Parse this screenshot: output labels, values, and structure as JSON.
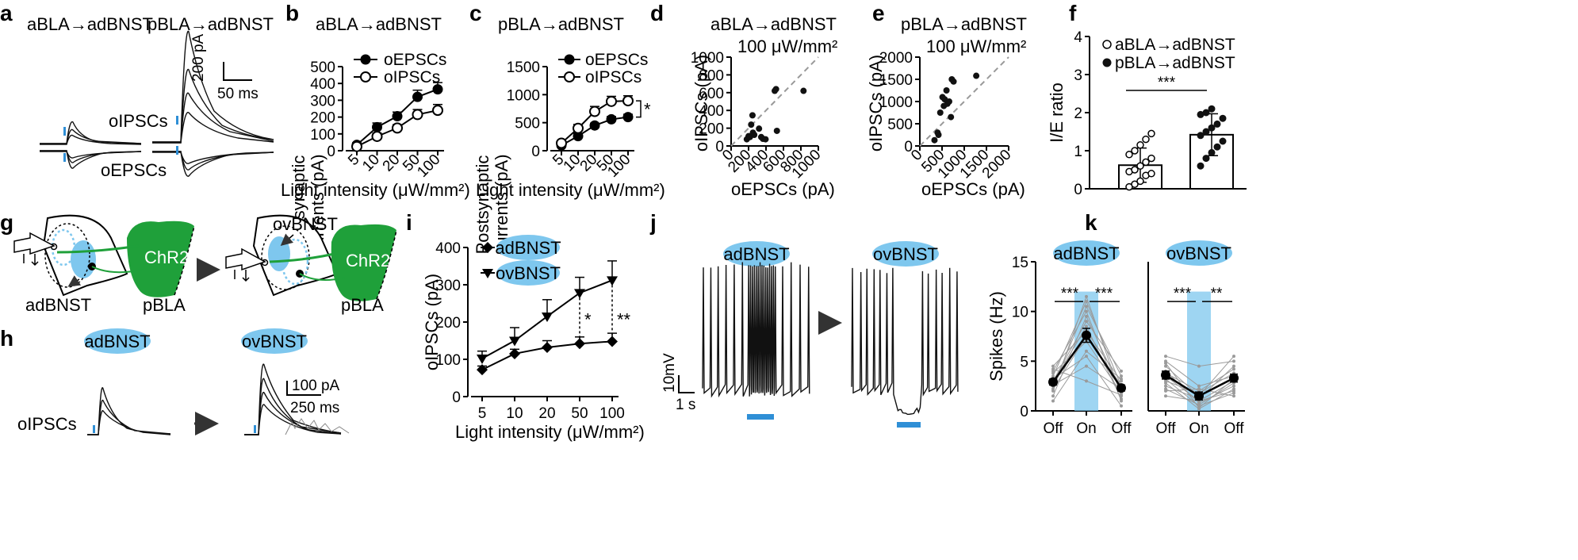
{
  "panel_labels": [
    "a",
    "b",
    "c",
    "d",
    "e",
    "f",
    "g",
    "h",
    "i",
    "j",
    "k"
  ],
  "colors": {
    "highlight": "#7ec7ee",
    "chr2": "#1fa03a",
    "light_bar": "#2f8fd6",
    "gray_trace": "#9a9a9a"
  },
  "panel_a": {
    "title_left": "aBLA→adBNST",
    "title_right": "pBLA→adBNST",
    "label_ipsc": "oIPSCs",
    "label_epsc": "oEPSCs",
    "scale_y": "200 pA",
    "scale_x": "50 ms"
  },
  "panel_g": {
    "label_ovbnst": "ovBNST",
    "label_adbnst": "adBNST",
    "label_pbla": "pBLA",
    "label_chr2": "ChR2"
  },
  "panel_h": {
    "pill_left": "adBNST",
    "pill_right": "ovBNST",
    "scale_y": "100 pA",
    "scale_x": "250 ms",
    "row_label": "oIPSCs"
  },
  "panel_j": {
    "pill_left": "adBNST",
    "pill_right": "ovBNST",
    "scale_y": "10mV",
    "scale_x": "1 s"
  },
  "chart_data": [
    {
      "id": "b",
      "type": "line",
      "title": "aBLA→adBNST",
      "xlabel": "Light intensity (μW/mm²)",
      "ylabel": "Postsynaptic currents (pA)",
      "categories": [
        "5",
        "10",
        "20",
        "50",
        "100"
      ],
      "ylim": [
        0,
        500
      ],
      "yticks": [
        0,
        100,
        200,
        300,
        400,
        500
      ],
      "series": [
        {
          "name": "oEPSCs",
          "marker": "filled",
          "values": [
            35,
            140,
            205,
            320,
            365
          ],
          "errors": [
            12,
            25,
            25,
            40,
            40
          ]
        },
        {
          "name": "oIPSCs",
          "marker": "open",
          "values": [
            25,
            85,
            135,
            215,
            240
          ],
          "errors": [
            8,
            20,
            20,
            30,
            35
          ]
        }
      ]
    },
    {
      "id": "c",
      "type": "line",
      "title": "pBLA→adBNST",
      "xlabel": "Light intensity (μW/mm²)",
      "ylabel": "Postsynaptic currents (pA)",
      "categories": [
        "5",
        "10",
        "20",
        "50",
        "100"
      ],
      "ylim": [
        0,
        1500
      ],
      "yticks": [
        0,
        500,
        1000,
        1500
      ],
      "series": [
        {
          "name": "oEPSCs",
          "marker": "filled",
          "values": [
            95,
            260,
            450,
            560,
            600
          ],
          "errors": [
            30,
            40,
            40,
            50,
            50
          ]
        },
        {
          "name": "oIPSCs",
          "marker": "open",
          "values": [
            135,
            400,
            700,
            880,
            890
          ],
          "errors": [
            40,
            70,
            90,
            90,
            90
          ]
        }
      ],
      "annotation": "*"
    },
    {
      "id": "d",
      "type": "scatter",
      "title": "aBLA→adBNST",
      "subtitle": "100 μW/mm²",
      "xlabel": "oEPSCs (pA)",
      "ylabel": "oIPSCs (pA)",
      "xlim": [
        0,
        1000
      ],
      "ylim": [
        0,
        1000
      ],
      "xticks": [
        0,
        200,
        400,
        600,
        800,
        1000
      ],
      "yticks": [
        0,
        200,
        400,
        600,
        800,
        1000
      ],
      "x": [
        180,
        200,
        215,
        230,
        245,
        250,
        265,
        320,
        345,
        365,
        395,
        500,
        515,
        525,
        830
      ],
      "y": [
        75,
        110,
        100,
        240,
        345,
        150,
        125,
        195,
        100,
        80,
        75,
        620,
        640,
        170,
        620
      ]
    },
    {
      "id": "e",
      "type": "scatter",
      "title": "pBLA→adBNST",
      "subtitle": "100 μW/mm²",
      "xlabel": "oEPSCs (pA)",
      "ylabel": "oIPSCs (pA)",
      "xlim": [
        0,
        2000
      ],
      "ylim": [
        0,
        2000
      ],
      "xticks": [
        0,
        500,
        1000,
        1500,
        2000
      ],
      "yticks": [
        0,
        500,
        1000,
        1500,
        2000
      ],
      "x": [
        330,
        400,
        420,
        460,
        510,
        540,
        560,
        600,
        620,
        660,
        700,
        720,
        760,
        1270
      ],
      "y": [
        130,
        300,
        250,
        750,
        1100,
        900,
        1050,
        1250,
        950,
        1000,
        650,
        1500,
        1450,
        1580
      ]
    },
    {
      "id": "f",
      "type": "bar",
      "ylabel": "I/E ratio",
      "ylim": [
        0,
        4
      ],
      "yticks": [
        0,
        1,
        2,
        3,
        4
      ],
      "categories": [
        "aBLA→adBNST",
        "pBLA→adBNST"
      ],
      "values": [
        0.62,
        1.42
      ],
      "errors": [
        0.45,
        0.55
      ],
      "points": [
        [
          0.05,
          0.12,
          0.2,
          0.35,
          0.4,
          0.45,
          0.5,
          0.6,
          0.7,
          0.8,
          0.9,
          1.0,
          1.15,
          1.3,
          1.45
        ],
        [
          0.6,
          0.8,
          0.95,
          1.1,
          1.25,
          1.4,
          1.5,
          1.6,
          1.7,
          1.85,
          1.95,
          2.0,
          2.1
        ]
      ],
      "legend": [
        "aBLA→adBNST",
        "pBLA→adBNST"
      ],
      "annotation": "***"
    },
    {
      "id": "i",
      "type": "line",
      "xlabel": "Light intensity (μW/mm²)",
      "ylabel": "oIPSCs (pA)",
      "categories": [
        "5",
        "10",
        "20",
        "50",
        "100"
      ],
      "ylim": [
        0,
        400
      ],
      "yticks": [
        0,
        100,
        200,
        300,
        400
      ],
      "series": [
        {
          "name": "adBNST",
          "marker": "diamond",
          "values": [
            72,
            115,
            132,
            142,
            148
          ],
          "errors": [
            10,
            12,
            18,
            18,
            22
          ]
        },
        {
          "name": "ovBNST",
          "marker": "triangle",
          "values": [
            102,
            150,
            215,
            278,
            312
          ],
          "errors": [
            20,
            35,
            45,
            42,
            52
          ]
        }
      ],
      "annotations": [
        "*",
        "**"
      ]
    },
    {
      "id": "k",
      "type": "line",
      "ylabel": "Spikes (Hz)",
      "ylim": [
        0,
        15
      ],
      "yticks": [
        0,
        5,
        10,
        15
      ],
      "panels": [
        {
          "pill": "adBNST",
          "categories": [
            "Off",
            "On",
            "Off"
          ],
          "mean": [
            2.9,
            7.6,
            2.3
          ],
          "errors": [
            0.3,
            0.7,
            0.3
          ],
          "annotations": [
            "***",
            "***"
          ],
          "individual": [
            [
              2.0,
              11.5,
              1.5
            ],
            [
              3.5,
              11.0,
              2.5
            ],
            [
              2.5,
              10.5,
              3.5
            ],
            [
              4.0,
              10.0,
              1.0
            ],
            [
              1.5,
              9.5,
              2.0
            ],
            [
              3.0,
              9.0,
              4.0
            ],
            [
              2.8,
              8.5,
              1.2
            ],
            [
              4.5,
              8.0,
              3.0
            ],
            [
              2.2,
              7.5,
              2.6
            ],
            [
              3.8,
              7.0,
              1.8
            ],
            [
              1.0,
              6.0,
              3.2
            ],
            [
              3.2,
              5.5,
              0.5
            ],
            [
              2.6,
              4.5,
              2.2
            ],
            [
              4.2,
              3.0,
              1.6
            ]
          ]
        },
        {
          "pill": "ovBNST",
          "categories": [
            "Off",
            "On",
            "Off"
          ],
          "mean": [
            3.6,
            1.5,
            3.3
          ],
          "errors": [
            0.4,
            0.4,
            0.4
          ],
          "annotations": [
            "***",
            "**"
          ],
          "individual": [
            [
              5.5,
              4.5,
              5.0
            ],
            [
              5.0,
              2.5,
              3.5
            ],
            [
              4.5,
              1.5,
              5.5
            ],
            [
              4.0,
              0.8,
              2.5
            ],
            [
              3.8,
              2.0,
              4.2
            ],
            [
              3.5,
              1.0,
              3.0
            ],
            [
              3.2,
              0.5,
              1.8
            ],
            [
              3.0,
              1.8,
              3.8
            ],
            [
              2.8,
              0.2,
              2.2
            ],
            [
              2.5,
              1.2,
              4.5
            ],
            [
              2.2,
              0.6,
              2.8
            ],
            [
              2.0,
              2.2,
              1.5
            ],
            [
              4.8,
              0.3,
              3.2
            ],
            [
              1.5,
              1.0,
              2.0
            ]
          ]
        }
      ]
    }
  ]
}
